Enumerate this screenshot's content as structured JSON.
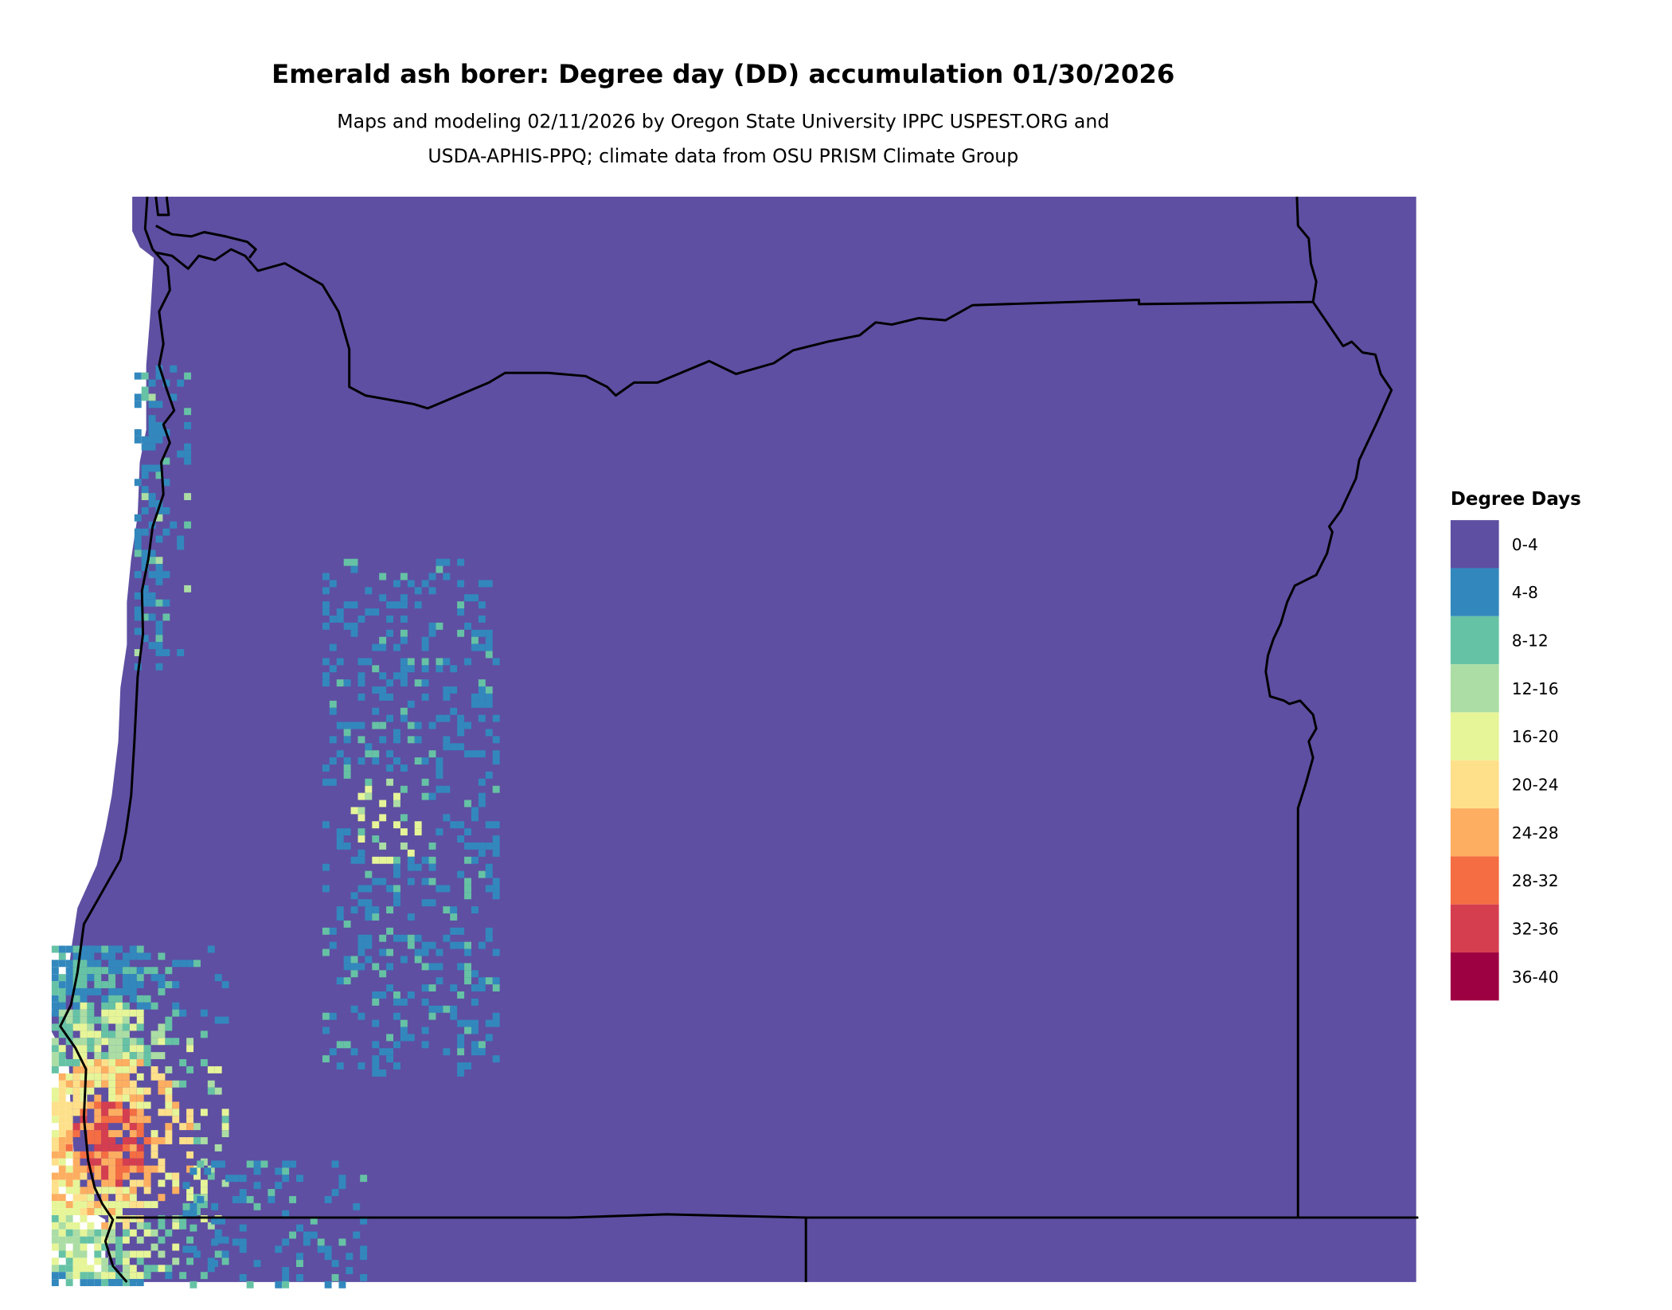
{
  "title": "Emerald ash borer: Degree day (DD) accumulation 01/30/2026",
  "subtitle_line1": "Maps and modeling 02/11/2026 by Oregon State University IPPC USPEST.ORG and",
  "subtitle_line2": "USDA-APHIS-PPQ; climate data from OSU PRISM Climate Group",
  "legend": {
    "title": "Degree Days",
    "items": [
      {
        "label": "0-4",
        "color": "#5E4FA2"
      },
      {
        "label": "4-8",
        "color": "#3288BD"
      },
      {
        "label": "8-12",
        "color": "#66C2A5"
      },
      {
        "label": "12-16",
        "color": "#ABDDA4"
      },
      {
        "label": "16-20",
        "color": "#E6F598"
      },
      {
        "label": "20-24",
        "color": "#FEE08B"
      },
      {
        "label": "24-28",
        "color": "#FDAE61"
      },
      {
        "label": "28-32",
        "color": "#F46D43"
      },
      {
        "label": "32-36",
        "color": "#D53E4F"
      },
      {
        "label": "36-40",
        "color": "#9E0142"
      }
    ]
  }
}
